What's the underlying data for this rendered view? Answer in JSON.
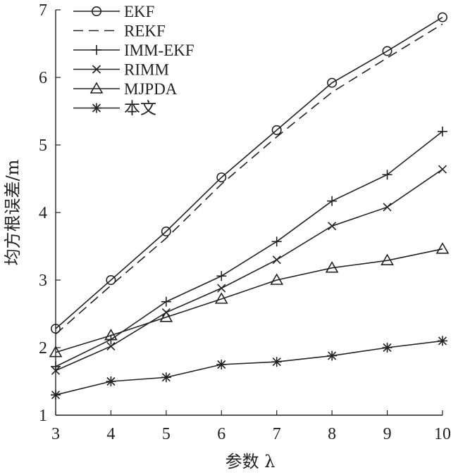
{
  "chart_data": {
    "type": "line",
    "title": "",
    "xlabel": "参数 λ",
    "ylabel": "均方根误差/m",
    "x": [
      3,
      4,
      5,
      6,
      7,
      8,
      9,
      10
    ],
    "xlim": [
      3,
      10
    ],
    "ylim": [
      1,
      7
    ],
    "xticks": [
      "3",
      "4",
      "5",
      "6",
      "7",
      "8",
      "9",
      "10"
    ],
    "yticks": [
      "1",
      "2",
      "3",
      "4",
      "5",
      "6",
      "7"
    ],
    "grid": false,
    "legend_position": "top-left",
    "series": [
      {
        "name": "EKF",
        "marker": "circle",
        "dash": "solid",
        "values": [
          2.28,
          3.0,
          3.72,
          4.52,
          5.22,
          5.92,
          6.39,
          6.89
        ]
      },
      {
        "name": "REKF",
        "marker": "none",
        "dash": "dashed",
        "values": [
          2.2,
          2.92,
          3.62,
          4.42,
          5.12,
          5.78,
          6.29,
          6.79
        ]
      },
      {
        "name": "IMM-EKF",
        "marker": "plus",
        "dash": "solid",
        "values": [
          1.72,
          2.12,
          2.68,
          3.06,
          3.57,
          4.17,
          4.56,
          5.2
        ]
      },
      {
        "name": "RIMM",
        "marker": "x",
        "dash": "solid",
        "values": [
          1.66,
          2.02,
          2.52,
          2.88,
          3.3,
          3.8,
          4.08,
          4.64
        ]
      },
      {
        "name": "MJPDA",
        "marker": "triangle",
        "dash": "solid",
        "values": [
          1.93,
          2.18,
          2.45,
          2.72,
          3.0,
          3.18,
          3.29,
          3.46
        ]
      },
      {
        "name": "本文",
        "marker": "asterisk",
        "dash": "solid",
        "values": [
          1.3,
          1.5,
          1.56,
          1.75,
          1.79,
          1.88,
          2.0,
          2.1
        ]
      }
    ]
  }
}
